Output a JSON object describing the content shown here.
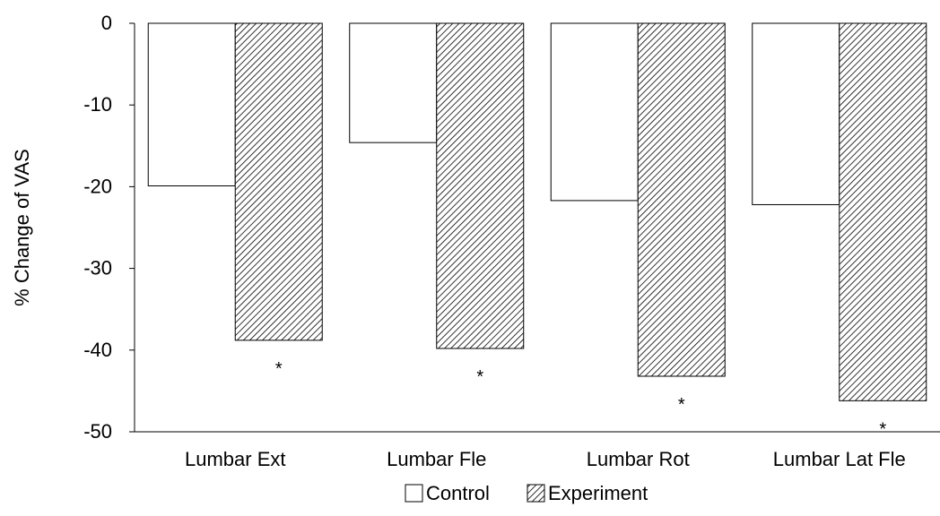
{
  "chart_data": {
    "type": "bar",
    "title": "",
    "xlabel": "",
    "ylabel": "% Change of VAS",
    "ylim": [
      -50,
      0
    ],
    "yticks": [
      0,
      -10,
      -20,
      -30,
      -40,
      -50
    ],
    "categories": [
      "Lumbar Ext",
      "Lumbar Fle",
      "Lumbar Rot",
      "Lumbar Lat Fle"
    ],
    "series": [
      {
        "name": "Control",
        "values": [
          -19.9,
          -14.6,
          -21.7,
          -22.2
        ],
        "fill": "white"
      },
      {
        "name": "Experiment",
        "values": [
          -38.8,
          -39.8,
          -43.2,
          -46.2
        ],
        "fill": "diagonal-hatch"
      }
    ],
    "annotations": [
      "*",
      "*",
      "*",
      "*"
    ],
    "grid": false,
    "legend_position": "bottom"
  }
}
